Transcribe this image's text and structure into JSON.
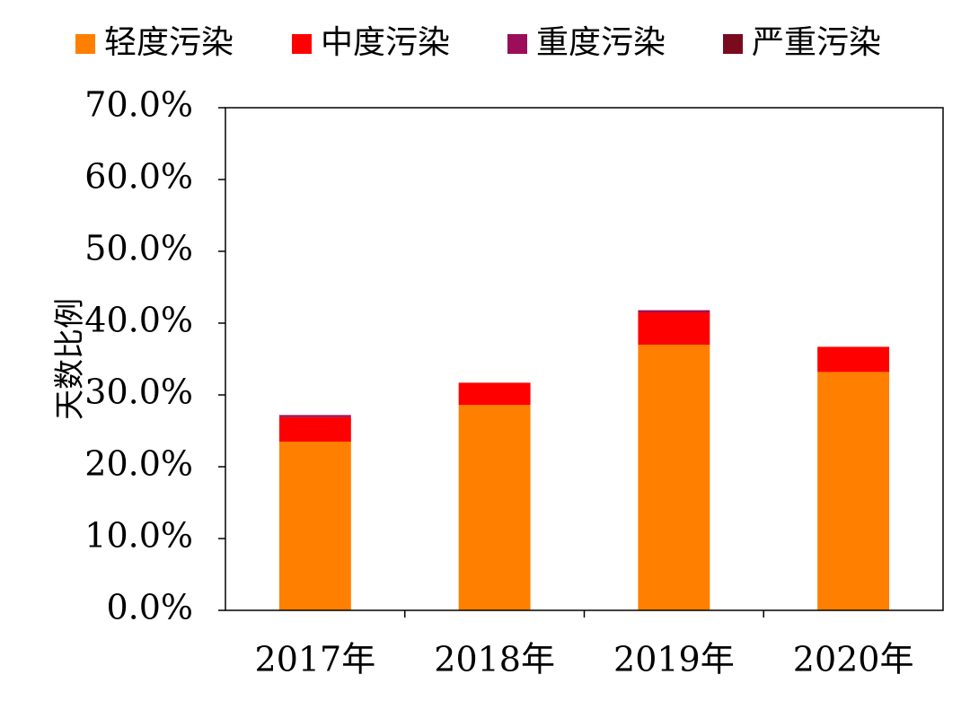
{
  "chart_data": {
    "type": "bar",
    "stacked": true,
    "title": "",
    "xlabel": "",
    "ylabel": "天数比例",
    "categories": [
      "2017年",
      "2018年",
      "2019年",
      "2020年"
    ],
    "series": [
      {
        "name": "轻度污染",
        "color": "#FF7F00",
        "values": [
          23.5,
          28.6,
          37.0,
          33.2
        ]
      },
      {
        "name": "中度污染",
        "color": "#FF0000",
        "values": [
          3.4,
          3.1,
          4.5,
          3.5
        ]
      },
      {
        "name": "重度污染",
        "color": "#9B0F5A",
        "values": [
          0.3,
          0.0,
          0.3,
          0.0
        ]
      },
      {
        "name": "严重污染",
        "color": "#7A0A1E",
        "values": [
          0.0,
          0.0,
          0.0,
          0.0
        ]
      }
    ],
    "ylim": [
      0,
      70
    ],
    "yticks": [
      0,
      10,
      20,
      30,
      40,
      50,
      60,
      70
    ],
    "ytick_labels": [
      "0.0%",
      "10.0%",
      "20.0%",
      "30.0%",
      "40.0%",
      "50.0%",
      "60.0%",
      "70.0%"
    ],
    "legend_position": "top",
    "grid": false
  }
}
